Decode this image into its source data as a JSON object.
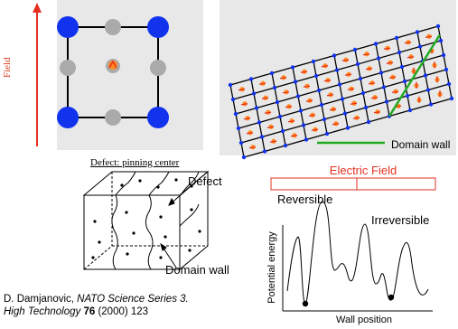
{
  "labels": {
    "field": "Field",
    "defect_caption": "Defect: pinning center",
    "domain_wall_legend": "Domain wall",
    "electric_field": "Electric Field",
    "reversible": "Reversible",
    "irreversible": "Irreversible",
    "potential_energy": "Potential energy",
    "wall_position": "Wall position",
    "defect": "Defect",
    "domain_wall": "Domain wall"
  },
  "citation": {
    "author": "D. Damjanovic, ",
    "journal": "NATO Science Series 3.",
    "journal2": "High Technology",
    "volume": "76",
    "rest": " (2000) 123"
  },
  "colors": {
    "field_arrow": "#e53020",
    "corner_atom": "#1133ee",
    "face_atom": "#aaaaaa",
    "center_atom": "#ff8a1e",
    "panel_bg": "#e8e8e8",
    "domain_wall_line": "#22aa22",
    "electric_field": "#e53020"
  }
}
